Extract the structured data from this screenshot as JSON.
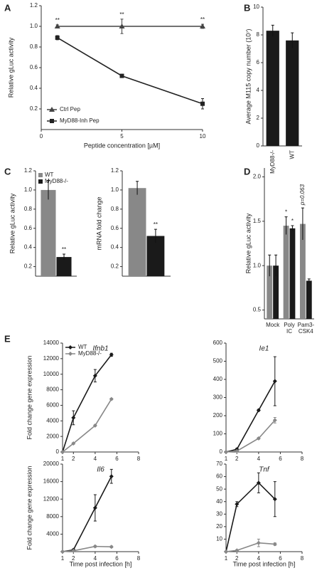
{
  "chart_data": [
    {
      "type": "line",
      "panel": "A",
      "xlabel": "Peptide concentration [µM]",
      "ylabel": "Relative gLuc activity",
      "x": [
        1,
        5,
        10
      ],
      "xlim": [
        0,
        10
      ],
      "xticks": [
        0,
        5,
        10
      ],
      "ylim": [
        0,
        1.2
      ],
      "yticks": [
        0.2,
        0.4,
        0.6,
        0.8,
        {
          "value": 1,
          "label": "1.0"
        },
        1.2
      ],
      "legend": "lower left",
      "significance": [
        "**",
        "**",
        "**"
      ],
      "series": [
        {
          "name": "Ctrl Pep",
          "color": "#444444",
          "marker": "triangle",
          "values": [
            1.0,
            1.0,
            1.0
          ],
          "errors": [
            0.015,
            0.07,
            0.02
          ]
        },
        {
          "name": "MyD88-Inh Pep",
          "color": "#222222",
          "marker": "square",
          "values": [
            0.89,
            0.52,
            0.25
          ],
          "errors": [
            0.02,
            0.015,
            0.05
          ]
        }
      ]
    },
    {
      "type": "bar",
      "panel": "B",
      "ylabel": "Average M115 copy number (10⁷)",
      "categories": [
        "MyD88-/-",
        "WT"
      ],
      "values": [
        8.3,
        7.6
      ],
      "errors": [
        0.4,
        0.55
      ],
      "color": "#1a1a1a",
      "ylim": [
        0,
        10
      ],
      "yticks": [
        0,
        2,
        4,
        6,
        8,
        10
      ]
    },
    {
      "type": "bar",
      "panel": "C",
      "ylabel": "Relative gLuc activity",
      "legend": "upper left",
      "ylim": [
        0.1,
        1.2
      ],
      "yticks": [
        0.2,
        0.4,
        0.6,
        0.8,
        {
          "value": 1,
          "label": "1.0"
        },
        1.2
      ],
      "series": [
        {
          "name": "WT",
          "color": "#888888",
          "values": [
            1.0
          ],
          "errors": [
            0.1
          ]
        },
        {
          "name": "MyD88-/-",
          "color": "#1a1a1a",
          "values": [
            0.3
          ],
          "errors": [
            0.03
          ],
          "significance": [
            "**"
          ]
        }
      ]
    },
    {
      "type": "bar",
      "ylabel": "mRNA fold change",
      "ylim": [
        0.1,
        1.2
      ],
      "yticks": [
        0.2,
        0.4,
        0.6,
        0.8,
        {
          "value": 1,
          "label": "1.0"
        },
        1.2
      ],
      "series": [
        {
          "color": "#888888",
          "values": [
            1.02
          ],
          "errors": [
            0.07
          ]
        },
        {
          "color": "#1a1a1a",
          "values": [
            0.52
          ],
          "errors": [
            0.07
          ],
          "significance": [
            "**"
          ]
        }
      ]
    },
    {
      "type": "bar",
      "panel": "D",
      "ylabel": "Relative gLuc activity",
      "categories": [
        "Mock",
        "Poly IC",
        "Pam3-CSK4"
      ],
      "ylim": [
        0.4,
        2.1
      ],
      "yticks": [
        0.5,
        {
          "value": 1,
          "label": "1.0"
        },
        1.5,
        {
          "value": 2,
          "label": "2.0"
        }
      ],
      "series": [
        {
          "color": "#888888",
          "values": [
            1.0,
            1.45,
            1.47
          ],
          "errors": [
            0.12,
            0.1,
            0.18
          ],
          "significance": [
            null,
            "*",
            "p=0.063"
          ]
        },
        {
          "color": "#1a1a1a",
          "values": [
            1.0,
            1.42,
            0.83
          ],
          "errors": [
            0.12,
            0.03,
            0.02
          ],
          "significance": [
            null,
            "*",
            null
          ]
        }
      ]
    },
    {
      "type": "line",
      "panel": "E",
      "title": "Ifnb1",
      "ylabel": "Fold change gene expression",
      "legend": "upper left",
      "x": [
        1,
        2,
        4,
        5.5
      ],
      "xlim": [
        1,
        8
      ],
      "xticks": [
        1,
        2,
        4,
        6,
        8
      ],
      "ylim": [
        0,
        14000
      ],
      "yticks": [
        0,
        2000,
        4000,
        6000,
        8000,
        10000,
        12000,
        14000
      ],
      "series": [
        {
          "name": "WT",
          "color": "#1a1a1a",
          "marker": "diamond",
          "values": [
            0,
            4400,
            9800,
            12500
          ],
          "errors": [
            0,
            900,
            800,
            200
          ]
        },
        {
          "name": "MyD88-/-",
          "color": "#888888",
          "marker": "diamond",
          "values": [
            0,
            1100,
            3400,
            6800
          ],
          "errors": [
            0,
            100,
            100,
            100
          ]
        }
      ]
    },
    {
      "type": "line",
      "title": "Ie1",
      "x": [
        1,
        2,
        4,
        5.5
      ],
      "xlim": [
        1,
        8
      ],
      "xticks": [
        1,
        2,
        4,
        6,
        8
      ],
      "ylim": [
        0,
        600
      ],
      "yticks": [
        0,
        100,
        200,
        300,
        400,
        500,
        600
      ],
      "series": [
        {
          "color": "#1a1a1a",
          "marker": "diamond",
          "values": [
            0,
            15,
            230,
            390
          ],
          "errors": [
            0,
            5,
            5,
            135
          ]
        },
        {
          "color": "#888888",
          "marker": "diamond",
          "values": [
            0,
            5,
            75,
            175
          ],
          "errors": [
            0,
            3,
            5,
            15
          ]
        }
      ]
    },
    {
      "type": "line",
      "title": "Il6",
      "ylabel": "Fold change gene expression",
      "xlabel": "Time post infection [h]",
      "x": [
        1,
        2,
        4,
        5.5
      ],
      "xlim": [
        1,
        8
      ],
      "xticks": [
        1,
        2,
        4,
        6,
        8
      ],
      "ylim": [
        0,
        20000
      ],
      "yticks": [
        4000,
        8000,
        12000,
        16000,
        20000
      ],
      "series": [
        {
          "color": "#1a1a1a",
          "marker": "diamond",
          "values": [
            0,
            400,
            10000,
            17200
          ],
          "errors": [
            0,
            200,
            3000,
            1600
          ]
        },
        {
          "color": "#888888",
          "marker": "diamond",
          "values": [
            0,
            200,
            1200,
            1100
          ],
          "errors": [
            0,
            100,
            200,
            200
          ]
        }
      ]
    },
    {
      "type": "line",
      "title": "Tnf",
      "xlabel": "Time post infection [h]",
      "x": [
        1,
        2,
        4,
        5.5
      ],
      "xlim": [
        1,
        8
      ],
      "xticks": [
        1,
        2,
        4,
        6,
        8
      ],
      "ylim": [
        0,
        70
      ],
      "yticks": [
        10,
        20,
        30,
        40,
        50,
        60,
        70
      ],
      "series": [
        {
          "color": "#1a1a1a",
          "marker": "diamond",
          "values": [
            0,
            38,
            55,
            42
          ],
          "errors": [
            0,
            2,
            8,
            14
          ]
        },
        {
          "color": "#888888",
          "marker": "diamond",
          "values": [
            0,
            1,
            7,
            6
          ],
          "errors": [
            0,
            0.5,
            3,
            1
          ]
        }
      ]
    }
  ]
}
